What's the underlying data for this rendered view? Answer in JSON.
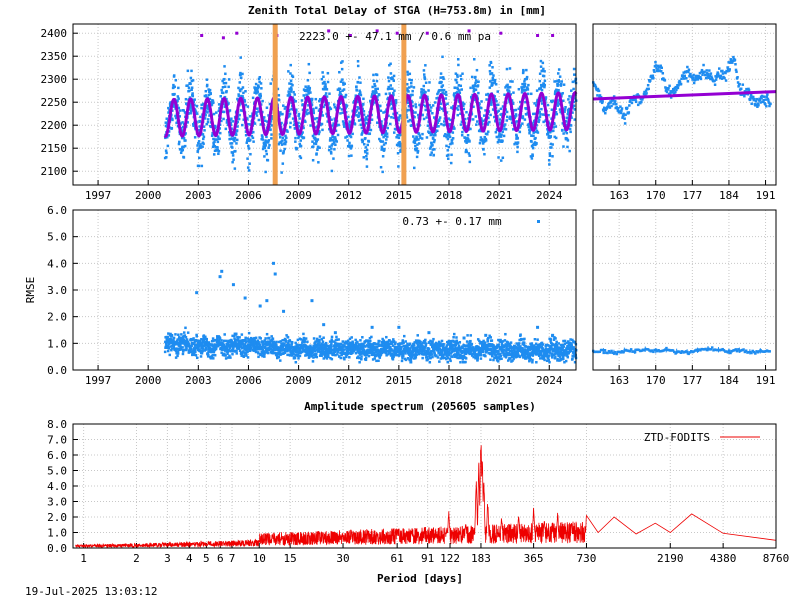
{
  "chart_data": [
    {
      "type": "scatter",
      "panel": "ztd-main",
      "title": "Zenith Total Delay of STGA (H=753.8m) in [mm]",
      "annotation": "2223.0 +-  47.1 mm /  0.6 mm pa",
      "xlabel": "",
      "ylabel": "",
      "xlim": [
        1995.5,
        2025.6
      ],
      "ylim": [
        2070,
        2420
      ],
      "x_ticks": [
        "1997",
        "2000",
        "2003",
        "2006",
        "2009",
        "2012",
        "2015",
        "2018",
        "2021",
        "2024"
      ],
      "y_ticks": [
        "2100",
        "2150",
        "2200",
        "2250",
        "2300",
        "2350",
        "2400"
      ],
      "data_start": 2001.0,
      "mean": 2223.0,
      "model_amplitude": 47.1,
      "trend_mm_per_year": 0.6,
      "spread": 55,
      "outliers": [
        [
          2003.2,
          2395
        ],
        [
          2004.5,
          2390
        ],
        [
          2005.3,
          2400
        ],
        [
          2007.7,
          2395
        ],
        [
          2010.8,
          2405
        ],
        [
          2012.1,
          2395
        ],
        [
          2013.7,
          2405
        ],
        [
          2014.9,
          2400
        ],
        [
          2016.7,
          2400
        ],
        [
          2019.2,
          2405
        ],
        [
          2021.1,
          2400
        ],
        [
          2023.3,
          2395
        ],
        [
          2024.2,
          2395
        ]
      ],
      "vertical_markers": [
        2007.6,
        2015.3
      ],
      "grid": true,
      "legend": "none",
      "colors": {
        "data": "#1e8cf0",
        "model": "#9400d3",
        "marker": "#f0a050"
      }
    },
    {
      "type": "scatter",
      "panel": "ztd-zoom",
      "xlim": [
        158,
        193
      ],
      "ylim": [
        2070,
        2420
      ],
      "x_ticks": [
        "163",
        "170",
        "177",
        "184",
        "191"
      ],
      "values": [
        [
          158,
          2290
        ],
        [
          159,
          2275
        ],
        [
          160,
          2235
        ],
        [
          161,
          2245
        ],
        [
          162,
          2255
        ],
        [
          163,
          2230
        ],
        [
          164,
          2215
        ],
        [
          165,
          2245
        ],
        [
          166,
          2260
        ],
        [
          167,
          2255
        ],
        [
          168,
          2270
        ],
        [
          169,
          2300
        ],
        [
          170,
          2330
        ],
        [
          171,
          2320
        ],
        [
          172,
          2275
        ],
        [
          173,
          2270
        ],
        [
          174,
          2280
        ],
        [
          175,
          2305
        ],
        [
          176,
          2315
        ],
        [
          177,
          2300
        ],
        [
          178,
          2305
        ],
        [
          179,
          2315
        ],
        [
          180,
          2310
        ],
        [
          181,
          2300
        ],
        [
          182,
          2310
        ],
        [
          183,
          2305
        ],
        [
          184,
          2330
        ],
        [
          185,
          2345
        ],
        [
          186,
          2280
        ],
        [
          187,
          2275
        ],
        [
          188,
          2265
        ],
        [
          189,
          2250
        ],
        [
          190,
          2260
        ],
        [
          191,
          2255
        ],
        [
          192,
          2250
        ]
      ],
      "model_line": [
        [
          158,
          2257
        ],
        [
          193,
          2273
        ]
      ],
      "grid": true
    },
    {
      "type": "scatter",
      "panel": "rmse-main",
      "annotation": "0.73 +-  0.17 mm",
      "ylabel": "RMSE",
      "xlim": [
        1995.5,
        2025.6
      ],
      "ylim": [
        0,
        6
      ],
      "x_ticks": [
        "1997",
        "2000",
        "2003",
        "2006",
        "2009",
        "2012",
        "2015",
        "2018",
        "2021",
        "2024"
      ],
      "y_ticks": [
        "0.0",
        "1.0",
        "2.0",
        "3.0",
        "4.0",
        "5.0",
        "6.0"
      ],
      "mean": 0.73,
      "std": 0.17,
      "outliers": [
        [
          2002.9,
          2.9
        ],
        [
          2004.3,
          3.5
        ],
        [
          2004.4,
          3.7
        ],
        [
          2005.1,
          3.2
        ],
        [
          2005.8,
          2.7
        ],
        [
          2006.7,
          2.4
        ],
        [
          2007.1,
          2.6
        ],
        [
          2007.5,
          4.0
        ],
        [
          2007.6,
          3.6
        ],
        [
          2008.1,
          2.2
        ],
        [
          2009.8,
          2.6
        ],
        [
          2010.5,
          1.7
        ],
        [
          2011.2,
          1.4
        ],
        [
          2013.4,
          1.6
        ],
        [
          2015.0,
          1.6
        ],
        [
          2016.8,
          1.4
        ],
        [
          2018.9,
          1.2
        ],
        [
          2020.2,
          1.3
        ],
        [
          2023.3,
          1.6
        ],
        [
          2024.2,
          1.3
        ]
      ],
      "grid": true,
      "legend": "none",
      "colors": {
        "data": "#1e8cf0"
      }
    },
    {
      "type": "scatter",
      "panel": "rmse-zoom",
      "xlim": [
        158,
        193
      ],
      "ylim": [
        0,
        6
      ],
      "x_ticks": [
        "163",
        "170",
        "177",
        "184",
        "191"
      ],
      "values": [
        [
          158,
          0.68
        ],
        [
          160,
          0.72
        ],
        [
          162,
          0.66
        ],
        [
          164,
          0.74
        ],
        [
          166,
          0.7
        ],
        [
          168,
          0.78
        ],
        [
          170,
          0.72
        ],
        [
          172,
          0.76
        ],
        [
          174,
          0.7
        ],
        [
          176,
          0.68
        ],
        [
          178,
          0.74
        ],
        [
          180,
          0.8
        ],
        [
          182,
          0.76
        ],
        [
          184,
          0.7
        ],
        [
          186,
          0.74
        ],
        [
          188,
          0.68
        ],
        [
          190,
          0.72
        ],
        [
          192,
          0.7
        ]
      ],
      "grid": true
    },
    {
      "type": "line",
      "panel": "spectrum",
      "title": "Amplitude spectrum (205605 samples)",
      "xlabel": "Period [days]",
      "ylabel": "",
      "xscale": "log",
      "xlim": [
        0.87,
        8760
      ],
      "ylim": [
        0,
        8
      ],
      "x_ticks": [
        "1",
        "2",
        "3",
        "4",
        "5",
        "6",
        "7",
        "10",
        "15",
        "30",
        "61",
        "91",
        "122",
        "183",
        "365",
        "730",
        "2190",
        "4380",
        "8760"
      ],
      "y_ticks": [
        "0.0",
        "1.0",
        "2.0",
        "3.0",
        "4.0",
        "5.0",
        "6.0",
        "7.0",
        "8.0"
      ],
      "series": [
        {
          "name": "ZTD-FODITS",
          "peaks": [
            [
              120,
              2.4
            ],
            [
              150,
              1.6
            ],
            [
              172,
              4.6
            ],
            [
              178,
              5.6
            ],
            [
              183,
              7.2
            ],
            [
              186,
              5.9
            ],
            [
              190,
              4.4
            ],
            [
              200,
              3.0
            ],
            [
              240,
              2.0
            ],
            [
              300,
              2.2
            ],
            [
              365,
              2.6
            ],
            [
              420,
              1.9
            ],
            [
              500,
              2.3
            ],
            [
              600,
              1.7
            ],
            [
              730,
              2.1
            ]
          ],
          "tail": [
            [
              730,
              2.1
            ],
            [
              850,
              1.0
            ],
            [
              1050,
              2.0
            ],
            [
              1400,
              0.9
            ],
            [
              1800,
              1.6
            ],
            [
              2190,
              1.0
            ],
            [
              2900,
              2.2
            ],
            [
              4380,
              0.95
            ],
            [
              8760,
              0.5
            ]
          ]
        }
      ],
      "grid": true,
      "legend": "top-right",
      "colors": {
        "line": "#ee0000"
      }
    }
  ],
  "footer": {
    "timestamp": "19-Jul-2025 13:03:12"
  }
}
